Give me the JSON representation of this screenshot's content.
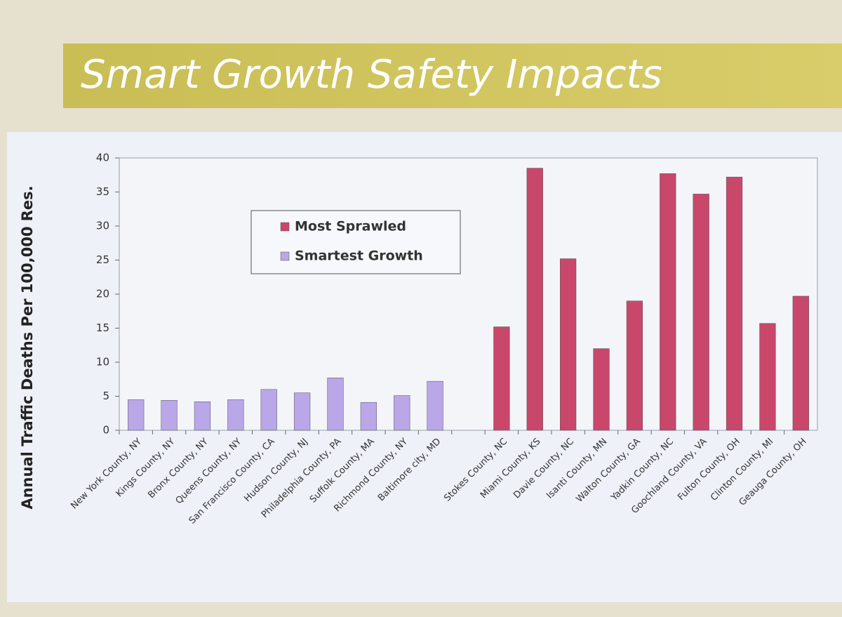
{
  "chart_data": {
    "type": "bar",
    "title": "Smart Growth Safety Impacts",
    "ylabel": "Annual Traffic Deaths Per 100,000 Res.",
    "categories": [
      "New York County, NY",
      "Kings County, NY",
      "Bronx County, NY",
      "Queens County, NY",
      "San Francisco County, CA",
      "Hudson County, NJ",
      "Philadelphia County, PA",
      "Suffolk County, MA",
      "Richmond County, NY",
      "Baltimore city, MD",
      null,
      "Stokes County, NC",
      "Miami County, KS",
      "Davie County, NC",
      "Isanti County, MN",
      "Walton County, GA",
      "Yadkin County, NC",
      "Goochland County, VA",
      "Fulton County, OH",
      "Clinton County, MI",
      "Geauga County, OH"
    ],
    "series": [
      {
        "name": "Most Sprawled",
        "color": "#c9476b",
        "values": [
          null,
          null,
          null,
          null,
          null,
          null,
          null,
          null,
          null,
          null,
          null,
          15.2,
          38.5,
          25.2,
          12.0,
          19.0,
          37.7,
          34.7,
          37.2,
          15.7,
          19.7
        ]
      },
      {
        "name": "Smartest Growth",
        "color": "#b9a7e8",
        "values": [
          4.5,
          4.4,
          4.2,
          4.5,
          6.0,
          5.5,
          7.7,
          4.1,
          5.1,
          7.2,
          null,
          null,
          null,
          null,
          null,
          null,
          null,
          null,
          null,
          null,
          null
        ]
      }
    ],
    "ylim": [
      0,
      40
    ],
    "yticks": [
      0,
      5,
      10,
      15,
      20,
      25,
      30,
      35,
      40
    ],
    "legend": "upper left"
  }
}
